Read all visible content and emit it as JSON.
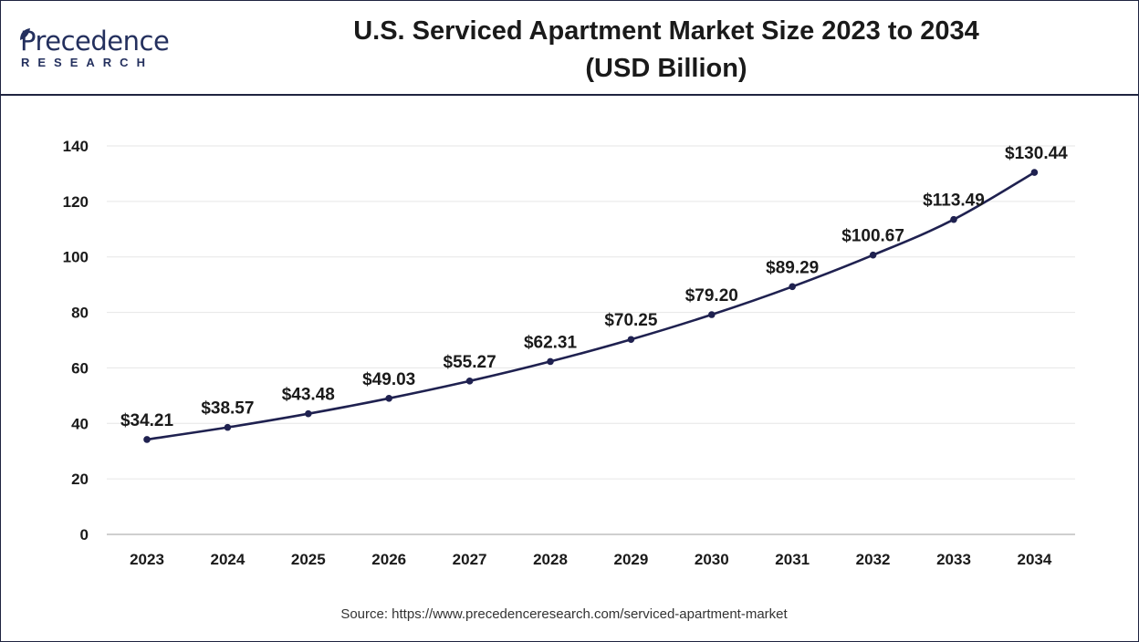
{
  "logo": {
    "name": "Precedence",
    "tagline": "RESEARCH"
  },
  "header": {
    "title_line1": "U.S. Serviced Apartment Market Size 2023 to 2034",
    "title_line2": "(USD Billion)"
  },
  "source": "Source: https://www.precedenceresearch.com/serviced-apartment-market",
  "colors": {
    "line": "#1f2150",
    "grid": "#e6e6e6",
    "brand": "#24305e"
  },
  "chart_data": {
    "type": "line",
    "title": "U.S. Serviced Apartment Market Size 2023 to 2034 (USD Billion)",
    "xlabel": "",
    "ylabel": "",
    "categories": [
      "2023",
      "2024",
      "2025",
      "2026",
      "2027",
      "2028",
      "2029",
      "2030",
      "2031",
      "2032",
      "2033",
      "2034"
    ],
    "values": [
      34.21,
      38.57,
      43.48,
      49.03,
      55.27,
      62.31,
      70.25,
      79.2,
      89.29,
      100.67,
      113.49,
      130.44
    ],
    "data_labels": [
      "$34.21",
      "$38.57",
      "$43.48",
      "$49.03",
      "$55.27",
      "$62.31",
      "$70.25",
      "$79.20",
      "$89.29",
      "$100.67",
      "$113.49",
      "$130.44"
    ],
    "ylim": [
      0,
      140
    ],
    "yticks": [
      0,
      20,
      40,
      60,
      80,
      100,
      120,
      140
    ],
    "grid": true,
    "legend": "none"
  }
}
